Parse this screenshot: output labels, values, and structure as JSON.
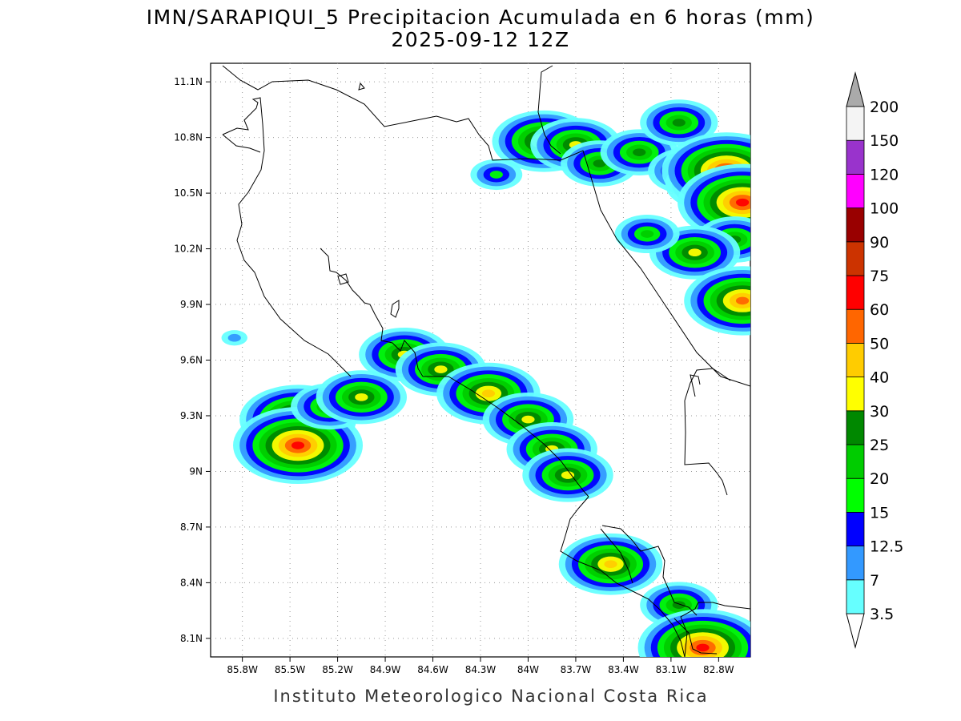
{
  "title": {
    "line1": "IMN/SARAPIQUI_5 Precipitacion Acumulada en 6 horas (mm)",
    "line2": "2025-09-12 12Z"
  },
  "footer": "Instituto Meteorologico Nacional Costa Rica",
  "map": {
    "lon_range": [
      -86.0,
      -82.6
    ],
    "lat_range": [
      8.0,
      11.2
    ],
    "lon_ticks": [
      {
        "value": -85.8,
        "label": "85.8W"
      },
      {
        "value": -85.5,
        "label": "85.5W"
      },
      {
        "value": -85.2,
        "label": "85.2W"
      },
      {
        "value": -84.9,
        "label": "84.9W"
      },
      {
        "value": -84.6,
        "label": "84.6W"
      },
      {
        "value": -84.3,
        "label": "84.3W"
      },
      {
        "value": -84.0,
        "label": "84W"
      },
      {
        "value": -83.7,
        "label": "83.7W"
      },
      {
        "value": -83.4,
        "label": "83.4W"
      },
      {
        "value": -83.1,
        "label": "83.1W"
      },
      {
        "value": -82.8,
        "label": "82.8W"
      }
    ],
    "lat_ticks": [
      {
        "value": 11.1,
        "label": "11.1N"
      },
      {
        "value": 10.8,
        "label": "10.8N"
      },
      {
        "value": 10.5,
        "label": "10.5N"
      },
      {
        "value": 10.2,
        "label": "10.2N"
      },
      {
        "value": 9.9,
        "label": "9.9N"
      },
      {
        "value": 9.6,
        "label": "9.6N"
      },
      {
        "value": 9.3,
        "label": "9.3N"
      },
      {
        "value": 9.0,
        "label": "9N"
      },
      {
        "value": 8.7,
        "label": "8.7N"
      },
      {
        "value": 8.4,
        "label": "8.4N"
      },
      {
        "value": 8.1,
        "label": "8.1N"
      }
    ],
    "grid": "dotted"
  },
  "colorbar": {
    "levels": [
      {
        "label": "3.5",
        "color": "#66ffff"
      },
      {
        "label": "7",
        "color": "#3399ff"
      },
      {
        "label": "12.5",
        "color": "#0000ff"
      },
      {
        "label": "15",
        "color": "#00ff00"
      },
      {
        "label": "20",
        "color": "#00cc00"
      },
      {
        "label": "25",
        "color": "#008800"
      },
      {
        "label": "30",
        "color": "#ffff00"
      },
      {
        "label": "40",
        "color": "#ffcc00"
      },
      {
        "label": "50",
        "color": "#ff6600"
      },
      {
        "label": "60",
        "color": "#ff0000"
      },
      {
        "label": "75",
        "color": "#cc3300"
      },
      {
        "label": "90",
        "color": "#990000"
      },
      {
        "label": "100",
        "color": "#ff00ff"
      },
      {
        "label": "120",
        "color": "#9933cc"
      },
      {
        "label": "150",
        "color": "#f4f4f4"
      },
      {
        "label": "200",
        "color": "#aaaaaa"
      }
    ],
    "bins": [
      "#66ffff",
      "#3399ff",
      "#0000ff",
      "#00ff00",
      "#00cc00",
      "#008800",
      "#ffff00",
      "#ffcc00",
      "#ff6600",
      "#ff0000",
      "#cc3300",
      "#990000",
      "#ff00ff",
      "#9933cc",
      "#f4f4f4"
    ],
    "under_color": "#ffffff",
    "over_color": "#aaaaaa"
  },
  "precip_cells": [
    {
      "lon": -83.9,
      "lat": 10.78,
      "level": 7
    },
    {
      "lon": -83.7,
      "lat": 10.76,
      "level": 6
    },
    {
      "lon": -83.55,
      "lat": 10.66,
      "level": 5
    },
    {
      "lon": -83.3,
      "lat": 10.72,
      "level": 5
    },
    {
      "lon": -83.05,
      "lat": 10.88,
      "level": 5
    },
    {
      "lon": -83.0,
      "lat": 10.62,
      "level": 5
    },
    {
      "lon": -82.85,
      "lat": 10.55,
      "level": 6
    },
    {
      "lon": -82.75,
      "lat": 10.62,
      "level": 9
    },
    {
      "lon": -82.65,
      "lat": 10.45,
      "level": 9
    },
    {
      "lon": -82.7,
      "lat": 10.25,
      "level": 5
    },
    {
      "lon": -82.95,
      "lat": 10.18,
      "level": 6
    },
    {
      "lon": -82.65,
      "lat": 9.92,
      "level": 8
    },
    {
      "lon": -83.25,
      "lat": 10.28,
      "level": 4
    },
    {
      "lon": -84.2,
      "lat": 10.6,
      "level": 3
    },
    {
      "lon": -84.78,
      "lat": 9.63,
      "level": 6
    },
    {
      "lon": -84.55,
      "lat": 9.55,
      "level": 6
    },
    {
      "lon": -84.25,
      "lat": 9.42,
      "level": 7
    },
    {
      "lon": -84.0,
      "lat": 9.28,
      "level": 6
    },
    {
      "lon": -83.85,
      "lat": 9.12,
      "level": 6
    },
    {
      "lon": -83.75,
      "lat": 8.98,
      "level": 6
    },
    {
      "lon": -85.45,
      "lat": 9.28,
      "level": 8
    },
    {
      "lon": -85.45,
      "lat": 9.14,
      "level": 9
    },
    {
      "lon": -85.25,
      "lat": 9.35,
      "level": 5
    },
    {
      "lon": -85.05,
      "lat": 9.4,
      "level": 6
    },
    {
      "lon": -83.48,
      "lat": 8.5,
      "level": 7
    },
    {
      "lon": -83.05,
      "lat": 8.28,
      "level": 5
    },
    {
      "lon": -82.9,
      "lat": 8.05,
      "level": 9
    },
    {
      "lon": -85.85,
      "lat": 9.72,
      "level": 1
    }
  ]
}
